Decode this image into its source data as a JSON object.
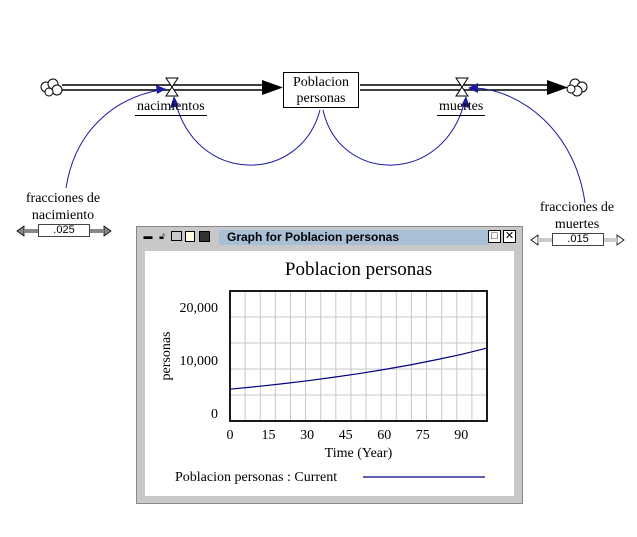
{
  "stock": {
    "label_line1": "Poblacion",
    "label_line2": "personas"
  },
  "flows": {
    "inflow": "nacimientos",
    "outflow": "muertes"
  },
  "params": {
    "birth_fraction": {
      "label_line1": "fracciones de",
      "label_line2": "nacimiento",
      "value": ".025"
    },
    "death_fraction": {
      "label_line1": "fracciones de",
      "label_line2": "muertes",
      "value": ".015"
    }
  },
  "graph_window": {
    "title": "Graph for Poblacion personas",
    "toolbar_icons": [
      "minimize-icon",
      "lock-icon",
      "print-icon",
      "copy-icon",
      "save-icon"
    ]
  },
  "chart_data": {
    "type": "line",
    "title": "Poblacion personas",
    "xlabel": "Time (Year)",
    "ylabel": "personas",
    "x_ticks": [
      "0",
      "15",
      "30",
      "45",
      "60",
      "75",
      "90"
    ],
    "y_ticks": [
      "0",
      "10,000",
      "20,000"
    ],
    "xlim": [
      0,
      100
    ],
    "ylim": [
      -1500,
      23000
    ],
    "grid": true,
    "legend_position": "bottom",
    "series": [
      {
        "name": "Poblacion personas : Current",
        "color": "#000080",
        "x": [
          0,
          10,
          20,
          30,
          40,
          50,
          60,
          70,
          80,
          90,
          100
        ],
        "y": [
          4500,
          4970,
          5490,
          6070,
          6710,
          7420,
          8200,
          9060,
          10010,
          11060,
          12230
        ]
      }
    ]
  }
}
